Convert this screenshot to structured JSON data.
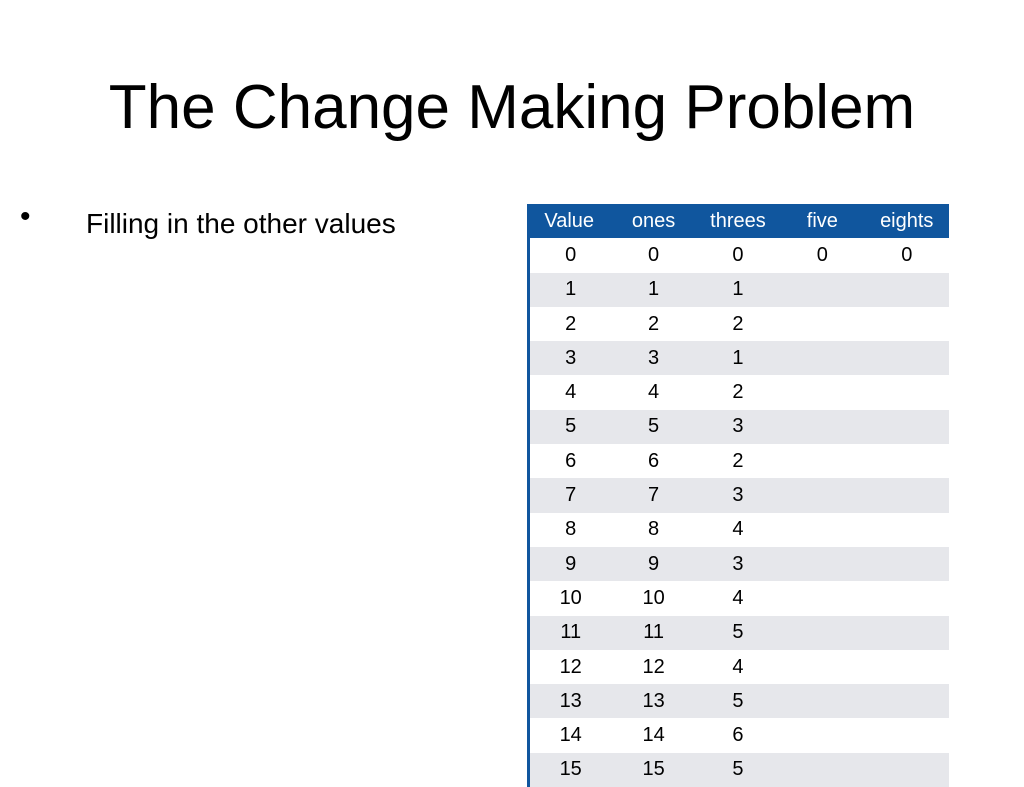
{
  "title": "The Change Making Problem",
  "bullets": [
    "Filling in the other values"
  ],
  "table": {
    "header": [
      "Value",
      "ones",
      "threes",
      "five",
      "eights"
    ],
    "rows": [
      [
        "0",
        "0",
        "0",
        "0",
        "0"
      ],
      [
        "1",
        "1",
        "1"
      ],
      [
        "2",
        "2",
        "2"
      ],
      [
        "3",
        "3",
        "1"
      ],
      [
        "4",
        "4",
        "2"
      ],
      [
        "5",
        "5",
        "3"
      ],
      [
        "6",
        "6",
        "2"
      ],
      [
        "7",
        "7",
        "3"
      ],
      [
        "8",
        "8",
        "4"
      ],
      [
        "9",
        "9",
        "3"
      ],
      [
        "10",
        "10",
        "4"
      ],
      [
        "11",
        "11",
        "5"
      ],
      [
        "12",
        "12",
        "4"
      ],
      [
        "13",
        "13",
        "5"
      ],
      [
        "14",
        "14",
        "6"
      ],
      [
        "15",
        "15",
        "5"
      ]
    ]
  }
}
